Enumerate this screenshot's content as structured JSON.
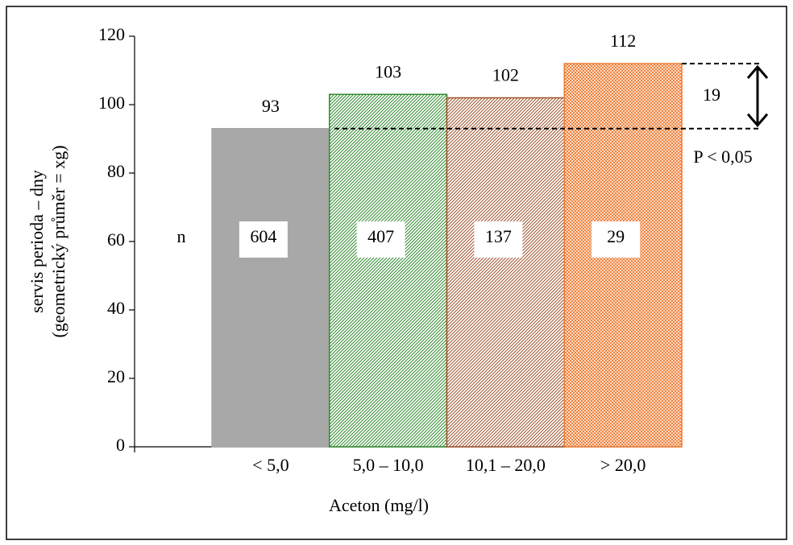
{
  "chart_data": {
    "type": "bar",
    "categories": [
      "< 5,0",
      "5,0 – 10,0",
      "10,1 – 20,0",
      "> 20,0"
    ],
    "values": [
      93,
      103,
      102,
      112
    ],
    "colors": [
      "#a8a8a8",
      "#2e8b2e",
      "#a0522d",
      "#f07a30"
    ],
    "patterns": [
      "solid",
      "hatch",
      "hatch",
      "crosshatch"
    ],
    "n_label": "n",
    "n_values": [
      604,
      407,
      137,
      29
    ],
    "ylabel": [
      "servis perioda – dny",
      "(geometrický průměr = xg)"
    ],
    "xlabel": "Aceton (mg/l)",
    "ylim": [
      0,
      120
    ],
    "yticks": [
      0,
      20,
      40,
      60,
      80,
      100,
      120
    ],
    "difference": 19,
    "significance": "P < 0,05"
  }
}
